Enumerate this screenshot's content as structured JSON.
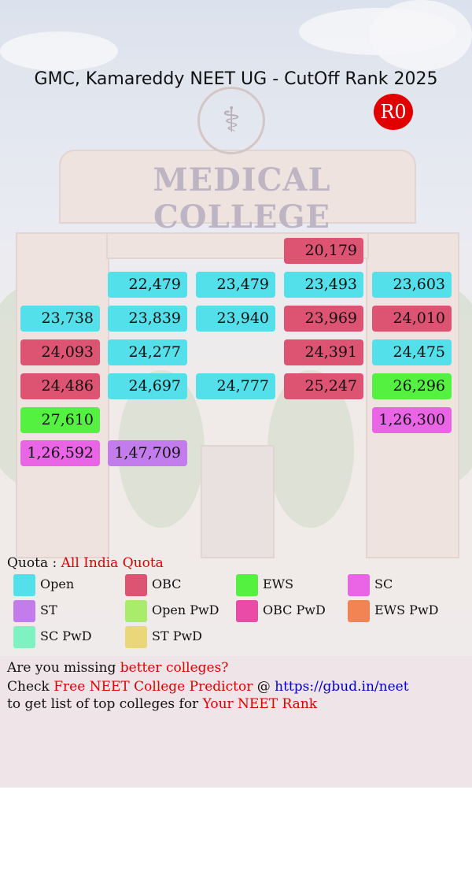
{
  "title": "GMC, Kamareddy NEET UG - CutOff Rank 2025",
  "round_badge": "R0",
  "background": {
    "sign_text": "MEDICAL COLLEGE",
    "emblem_icon": "caduceus-icon"
  },
  "cutoff_cells": [
    {
      "rank": "20,179",
      "category": "OBC"
    },
    {
      "rank": "22,479",
      "category": "Open"
    },
    {
      "rank": "23,479",
      "category": "Open"
    },
    {
      "rank": "23,493",
      "category": "Open"
    },
    {
      "rank": "23,603",
      "category": "Open"
    },
    {
      "rank": "23,738",
      "category": "Open"
    },
    {
      "rank": "23,839",
      "category": "Open"
    },
    {
      "rank": "23,940",
      "category": "Open"
    },
    {
      "rank": "23,969",
      "category": "OBC"
    },
    {
      "rank": "24,010",
      "category": "OBC"
    },
    {
      "rank": "24,093",
      "category": "OBC"
    },
    {
      "rank": "24,277",
      "category": "Open"
    },
    {
      "rank": "24,391",
      "category": "OBC"
    },
    {
      "rank": "24,475",
      "category": "Open"
    },
    {
      "rank": "24,486",
      "category": "OBC"
    },
    {
      "rank": "24,697",
      "category": "Open"
    },
    {
      "rank": "24,777",
      "category": "Open"
    },
    {
      "rank": "25,247",
      "category": "OBC"
    },
    {
      "rank": "26,296",
      "category": "EWS"
    },
    {
      "rank": "27,610",
      "category": "EWS"
    },
    {
      "rank": "1,26,300",
      "category": "SC"
    },
    {
      "rank": "1,26,592",
      "category": "SC"
    },
    {
      "rank": "1,47,709",
      "category": "ST"
    }
  ],
  "quota": {
    "label": "Quota :",
    "value": "All India Quota"
  },
  "legend": [
    {
      "label": "Open",
      "color": "#53e0ea"
    },
    {
      "label": "OBC",
      "color": "#dd5372"
    },
    {
      "label": "EWS",
      "color": "#55f141"
    },
    {
      "label": "SC",
      "color": "#ea64e6"
    },
    {
      "label": "ST",
      "color": "#c27ceb"
    },
    {
      "label": "Open PwD",
      "color": "#a9ec6c"
    },
    {
      "label": "OBC PwD",
      "color": "#e94ba6"
    },
    {
      "label": "EWS PwD",
      "color": "#f28454"
    },
    {
      "label": "SC PwD",
      "color": "#7ff2c1"
    },
    {
      "label": "ST PwD",
      "color": "#ead77a"
    }
  ],
  "promo": {
    "line1_prefix": "Are you missing ",
    "line1_highlight": "better colleges?",
    "line2_prefix": "Check ",
    "line2_highlight": "Free NEET College Predictor",
    "line2_at": " @ ",
    "line2_link": "https://gbud.in/neet",
    "line3_prefix": "to get list of top colleges for ",
    "line3_highlight": "Your NEET Rank"
  }
}
